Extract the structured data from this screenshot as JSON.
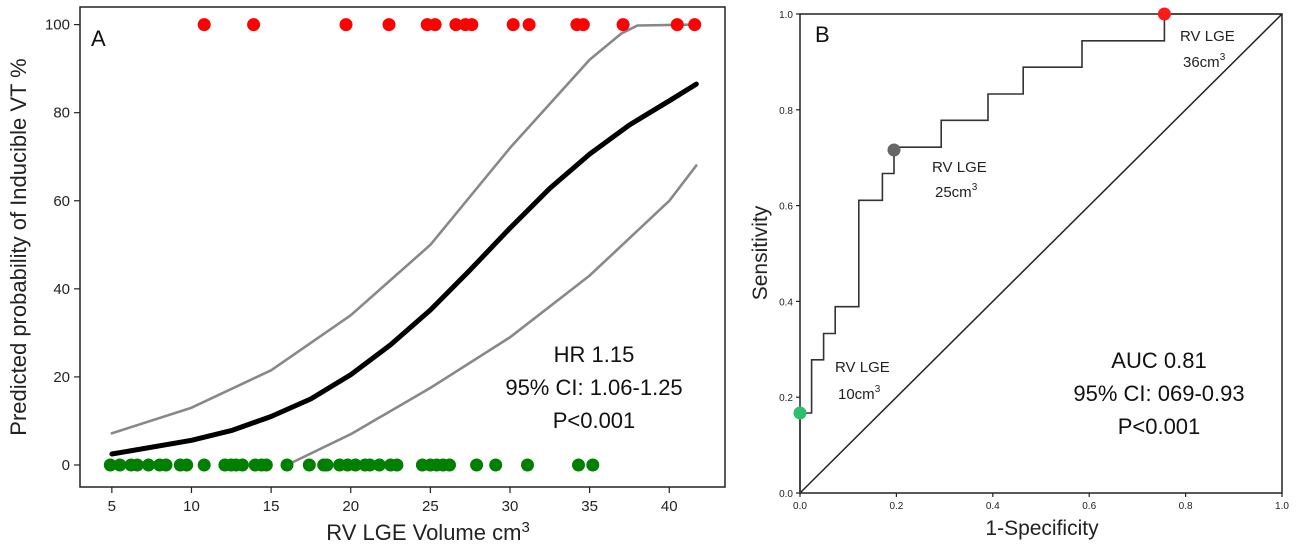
{
  "chart_data": [
    {
      "panel": "A",
      "type": "line",
      "xlabel": "RV LGE Volume cm",
      "xlabel_superscript": "3",
      "ylabel": "Predicted probability of Inducible VT %",
      "xlim": [
        3,
        43.5
      ],
      "ylim": [
        -5,
        104
      ],
      "x_ticks": [
        5,
        10,
        15,
        20,
        25,
        30,
        35,
        40
      ],
      "y_ticks": [
        0,
        20,
        40,
        60,
        80,
        100
      ],
      "grid": false,
      "series": [
        {
          "role": "fit",
          "color": "#000000",
          "x": [
            5,
            10,
            12.5,
            15,
            17.5,
            20,
            22.5,
            25,
            27.5,
            30,
            32.5,
            35,
            37.5,
            40,
            41.7
          ],
          "y": [
            2.5,
            5.6,
            7.8,
            11.0,
            15.0,
            20.5,
            27.3,
            35.2,
            44.3,
            53.8,
            62.8,
            70.6,
            77.2,
            82.7,
            86.5
          ]
        },
        {
          "role": "ci-upper",
          "color": "#888888",
          "x": [
            5,
            10,
            15,
            20,
            25,
            30,
            32.5,
            35,
            37,
            38,
            41.7
          ],
          "y": [
            7.2,
            13.0,
            21.5,
            34.0,
            50.0,
            72.0,
            82.0,
            92.0,
            98.0,
            99.8,
            100
          ]
        },
        {
          "role": "ci-lower",
          "color": "#888888",
          "x": [
            16,
            20,
            25,
            30,
            35,
            40,
            41.7
          ],
          "y": [
            0,
            7.0,
            17.5,
            29.0,
            43.0,
            60.0,
            68.0
          ]
        },
        {
          "role": "inducible",
          "color": "#ff0000",
          "y_value": 100,
          "x": [
            10.8,
            13.9,
            19.7,
            22.4,
            24.8,
            25.3,
            26.6,
            27.2,
            27.6,
            30.2,
            31.2,
            34.2,
            34.6,
            37.1,
            40.5,
            41.6
          ]
        },
        {
          "role": "non-inducible",
          "color": "#008000",
          "y_value": 0,
          "x": [
            4.9,
            5.5,
            6.2,
            6.6,
            7.3,
            8.0,
            8.4,
            9.3,
            9.7,
            10.8,
            12.1,
            12.5,
            12.8,
            13.2,
            14.0,
            14.4,
            14.7,
            16.0,
            17.4,
            18.3,
            18.5,
            19.3,
            19.8,
            20.3,
            20.9,
            21.2,
            21.8,
            22.5,
            22.9,
            24.5,
            25.0,
            25.4,
            25.8,
            26.2,
            27.9,
            29.1,
            31.1,
            34.3,
            35.2
          ]
        }
      ],
      "annotation_lines": [
        "HR 1.15",
        "95% CI: 1.06-1.25",
        "P<0.001"
      ]
    },
    {
      "panel": "B",
      "type": "line",
      "xlabel": "1-Specificity",
      "ylabel": "Sensitivity",
      "xlim": [
        0,
        1
      ],
      "ylim": [
        0,
        1
      ],
      "x_ticks": [
        "0.0",
        "0.2",
        "0.4",
        "0.6",
        "0.8",
        "1.0"
      ],
      "y_ticks": [
        "0.0",
        "0.2",
        "0.4",
        "0.6",
        "0.8",
        "1.0"
      ],
      "grid": false,
      "roc": {
        "x": [
          0.0,
          0.0,
          0.024,
          0.024,
          0.049,
          0.049,
          0.073,
          0.073,
          0.122,
          0.122,
          0.171,
          0.171,
          0.195,
          0.195,
          0.293,
          0.293,
          0.39,
          0.39,
          0.463,
          0.463,
          0.585,
          0.585,
          0.756,
          0.756,
          1.0
        ],
        "y": [
          0.0,
          0.167,
          0.167,
          0.278,
          0.278,
          0.333,
          0.333,
          0.389,
          0.389,
          0.611,
          0.611,
          0.667,
          0.667,
          0.722,
          0.722,
          0.778,
          0.778,
          0.833,
          0.833,
          0.889,
          0.889,
          0.944,
          0.944,
          1.0,
          1.0
        ]
      },
      "reference_line": {
        "x": [
          0,
          1
        ],
        "y": [
          0,
          1
        ]
      },
      "markers": [
        {
          "x": 0.0,
          "y": 0.167,
          "color": "#2dbf6b",
          "label_line1": "RV LGE",
          "label_line2": "10cm",
          "superscript": "3"
        },
        {
          "x": 0.195,
          "y": 0.716,
          "color": "#666666",
          "label_line1": "RV LGE",
          "label_line2": "25cm",
          "superscript": "3"
        },
        {
          "x": 0.756,
          "y": 1.0,
          "color": "#ff1a1a",
          "label_line1": "RV LGE",
          "label_line2": "36cm",
          "superscript": "3"
        }
      ],
      "annotation_lines": [
        "AUC 0.81",
        "95% CI: 069-0.93",
        "P<0.001"
      ]
    }
  ]
}
